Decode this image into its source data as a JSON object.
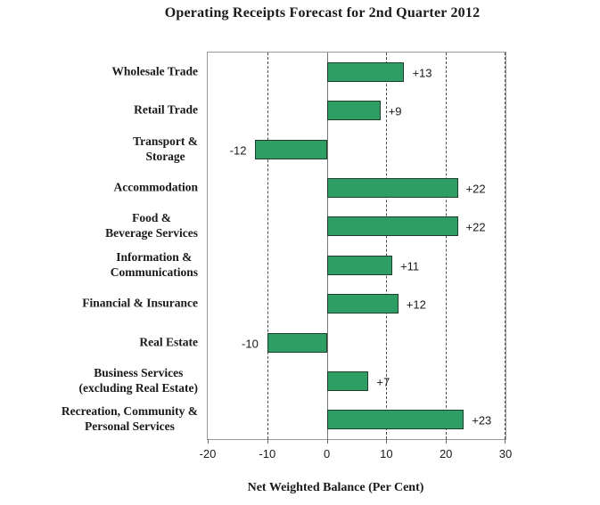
{
  "page": {
    "background": "#ffffff"
  },
  "chart_data": {
    "type": "bar",
    "orientation": "horizontal",
    "title": "Operating Receipts Forecast for 2nd Quarter 2012",
    "xlabel": "Net Weighted Balance (Per Cent)",
    "xlim": [
      -20,
      30
    ],
    "x_ticks": [
      -20,
      -10,
      0,
      10,
      20,
      30
    ],
    "gridlines_at": [
      -10,
      10,
      20,
      30
    ],
    "grid_style": "dashed",
    "legend": "none",
    "categories": [
      [
        "Wholesale Trade"
      ],
      [
        "Retail Trade"
      ],
      [
        "Transport &",
        "Storage"
      ],
      [
        "Accommodation"
      ],
      [
        "Food &",
        "Beverage Services"
      ],
      [
        "Information &",
        "Communications"
      ],
      [
        "Financial & Insurance"
      ],
      [
        "Real Estate"
      ],
      [
        "Business Services",
        "(excluding Real Estate)"
      ],
      [
        "Recreation, Community &",
        "Personal Services"
      ]
    ],
    "values": [
      13,
      9,
      -12,
      22,
      22,
      11,
      12,
      -10,
      7,
      23
    ],
    "bar_labels": [
      "+13",
      "+9",
      "-12",
      "+22",
      "+22",
      "+11",
      "+12",
      "-10",
      "+7",
      "+23"
    ],
    "colors": {
      "bar_fill": "#2f9e64",
      "bar_border": "#1f3d2b",
      "gridline": "#4d4d4d",
      "plot_border": "#999999",
      "zero_line": "#777777",
      "text": "#1a1a1a"
    }
  }
}
